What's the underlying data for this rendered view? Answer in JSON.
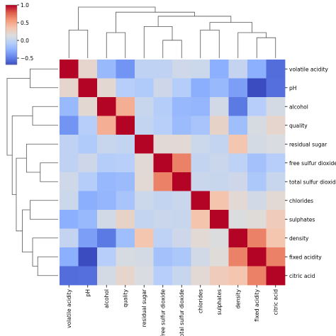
{
  "chart_data": {
    "type": "heatmap",
    "title": "",
    "variables": [
      "volatile acidity",
      "pH",
      "alcohol",
      "quality",
      "residual sugar",
      "free sulfur dioxide",
      "total sulfur dioxide",
      "chlorides",
      "sulphates",
      "density",
      "fixed acidity",
      "citric acid"
    ],
    "matrix": [
      [
        1.0,
        0.23,
        -0.2,
        -0.39,
        -0.01,
        -0.01,
        0.08,
        0.06,
        -0.26,
        0.02,
        -0.26,
        -0.55
      ],
      [
        0.23,
        1.0,
        0.21,
        -0.06,
        -0.09,
        0.07,
        -0.07,
        -0.27,
        -0.2,
        -0.34,
        -0.68,
        -0.54
      ],
      [
        -0.2,
        0.21,
        1.0,
        0.48,
        0.04,
        -0.07,
        -0.21,
        -0.22,
        0.09,
        -0.5,
        -0.06,
        0.11
      ],
      [
        -0.39,
        -0.06,
        0.48,
        1.0,
        0.01,
        -0.05,
        -0.19,
        -0.13,
        0.25,
        -0.17,
        0.12,
        0.23
      ],
      [
        -0.01,
        -0.09,
        0.04,
        0.01,
        1.0,
        0.19,
        0.2,
        0.06,
        0.01,
        0.36,
        0.11,
        0.14
      ],
      [
        -0.01,
        0.07,
        -0.07,
        -0.05,
        0.19,
        1.0,
        0.67,
        0.01,
        0.05,
        -0.02,
        -0.15,
        -0.06
      ],
      [
        0.08,
        -0.07,
        -0.21,
        -0.19,
        0.2,
        0.67,
        1.0,
        0.05,
        0.04,
        0.07,
        -0.11,
        0.04
      ],
      [
        0.06,
        -0.27,
        -0.22,
        -0.13,
        0.06,
        0.01,
        0.05,
        1.0,
        0.37,
        0.2,
        0.09,
        0.2
      ],
      [
        -0.26,
        -0.2,
        0.09,
        0.25,
        0.01,
        0.05,
        0.04,
        0.37,
        1.0,
        0.15,
        0.18,
        0.31
      ],
      [
        0.02,
        -0.34,
        -0.5,
        -0.17,
        0.36,
        -0.02,
        0.07,
        0.2,
        0.15,
        1.0,
        0.67,
        0.36
      ],
      [
        -0.26,
        -0.68,
        -0.06,
        0.12,
        0.11,
        -0.15,
        -0.11,
        0.09,
        0.18,
        0.67,
        1.0,
        0.67
      ],
      [
        -0.55,
        -0.54,
        0.11,
        0.23,
        0.14,
        -0.06,
        0.04,
        0.2,
        0.31,
        0.36,
        0.67,
        1.0
      ]
    ],
    "colorbar": {
      "colormap": "coolwarm",
      "vmin": -0.68,
      "vmax": 1.0,
      "ticks": [
        -0.5,
        0.0,
        0.5,
        1.0
      ],
      "tick_labels": [
        "−0.5",
        "0.0",
        "0.5",
        "1.0"
      ]
    },
    "dendrograms": {
      "rows": true,
      "columns": true
    }
  }
}
